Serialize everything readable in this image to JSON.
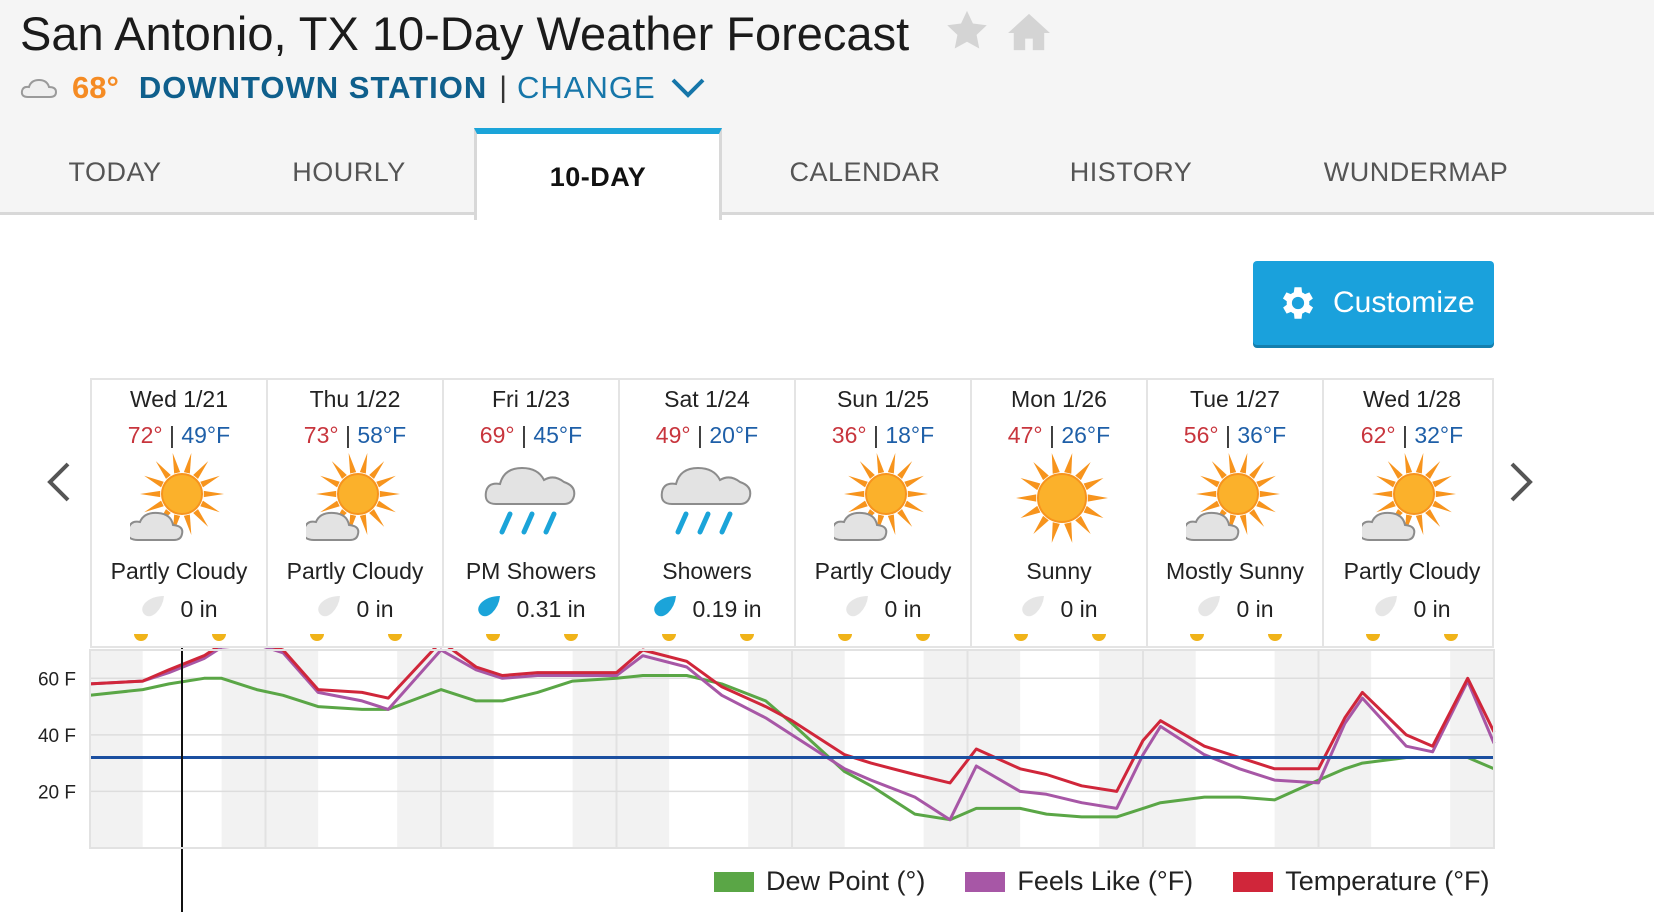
{
  "header": {
    "title": "San Antonio, TX 10-Day Weather Forecast",
    "current_temp": "68°",
    "station_name": "DOWNTOWN STATION",
    "separator": "|",
    "change_label": "CHANGE"
  },
  "tabs": [
    {
      "label": "TODAY",
      "active": false
    },
    {
      "label": "HOURLY",
      "active": false
    },
    {
      "label": "10-DAY",
      "active": true
    },
    {
      "label": "CALENDAR",
      "active": false
    },
    {
      "label": "HISTORY",
      "active": false
    },
    {
      "label": "WUNDERMAP",
      "active": false
    }
  ],
  "customize_label": "Customize",
  "days": [
    {
      "date": "Wed 1/21",
      "high": "72°",
      "low": "49°F",
      "icon": "partly-cloudy-icon",
      "condition": "Partly Cloudy",
      "precip": "0 in",
      "precip_icon": "no-rain-drop-icon"
    },
    {
      "date": "Thu 1/22",
      "high": "73°",
      "low": "58°F",
      "icon": "partly-cloudy-icon",
      "condition": "Partly Cloudy",
      "precip": "0 in",
      "precip_icon": "no-rain-drop-icon"
    },
    {
      "date": "Fri 1/23",
      "high": "69°",
      "low": "45°F",
      "icon": "rain-cloud-icon",
      "condition": "PM Showers",
      "precip": "0.31 in",
      "precip_icon": "rain-drop-icon"
    },
    {
      "date": "Sat 1/24",
      "high": "49°",
      "low": "20°F",
      "icon": "rain-cloud-icon",
      "condition": "Showers",
      "precip": "0.19 in",
      "precip_icon": "rain-drop-icon"
    },
    {
      "date": "Sun 1/25",
      "high": "36°",
      "low": "18°F",
      "icon": "partly-cloudy-icon",
      "condition": "Partly Cloudy",
      "precip": "0 in",
      "precip_icon": "no-rain-drop-icon"
    },
    {
      "date": "Mon 1/26",
      "high": "47°",
      "low": "26°F",
      "icon": "sunny-icon",
      "condition": "Sunny",
      "precip": "0 in",
      "precip_icon": "no-rain-drop-icon"
    },
    {
      "date": "Tue 1/27",
      "high": "56°",
      "low": "36°F",
      "icon": "partly-cloudy-icon",
      "condition": "Mostly Sunny",
      "precip": "0 in",
      "precip_icon": "no-rain-drop-icon"
    },
    {
      "date": "Wed 1/28",
      "high": "62°",
      "low": "32°F",
      "icon": "partly-cloudy-icon",
      "condition": "Partly Cloudy",
      "precip": "0 in",
      "precip_icon": "no-rain-drop-icon"
    }
  ],
  "colors": {
    "accent": "#1aa1dc",
    "high_temp": "#c8353d",
    "low_temp": "#1e5fa8",
    "dew_point": "#5aa646",
    "feels_like": "#a757a6",
    "temperature": "#d0263a",
    "freezing_line": "#1b4fa0",
    "station": "#0f5f8c",
    "current_temp": "#f58b23"
  },
  "chart_data": {
    "type": "line",
    "ylim": [
      0,
      70
    ],
    "yticks": [
      {
        "value": 20,
        "label": "20 F"
      },
      {
        "value": 40,
        "label": "40 F"
      },
      {
        "value": 60,
        "label": "60 F"
      }
    ],
    "x_unit": "day",
    "x_range": [
      0,
      8
    ],
    "freezing_line": 32,
    "series": [
      {
        "name": "Temperature (°F)",
        "x": [
          0,
          0.3,
          0.45,
          0.65,
          0.75,
          0.95,
          1.1,
          1.3,
          1.55,
          1.7,
          2.0,
          2.2,
          2.35,
          2.55,
          2.75,
          3.0,
          3.15,
          3.4,
          3.6,
          3.85,
          4.0,
          4.3,
          4.45,
          4.7,
          4.9,
          5.05,
          5.3,
          5.45,
          5.65,
          5.85,
          6.0,
          6.1,
          6.35,
          6.55,
          6.75,
          7.0,
          7.15,
          7.25,
          7.5,
          7.65,
          7.85,
          8.0
        ],
        "y": [
          58,
          59,
          63,
          68,
          72,
          73,
          70,
          56,
          55,
          53,
          73,
          64,
          61,
          62,
          62,
          62,
          70,
          66,
          57,
          50,
          45,
          33,
          30,
          26,
          23,
          35,
          28,
          26,
          22,
          20,
          38,
          45,
          36,
          32,
          28,
          28,
          46,
          55,
          40,
          36,
          60,
          41
        ]
      },
      {
        "name": "Feels Like (°F)",
        "x": [
          0,
          0.3,
          0.45,
          0.65,
          0.75,
          0.95,
          1.1,
          1.3,
          1.55,
          1.7,
          2.0,
          2.2,
          2.35,
          2.55,
          2.75,
          3.0,
          3.15,
          3.4,
          3.6,
          3.85,
          4.0,
          4.3,
          4.45,
          4.7,
          4.9,
          5.05,
          5.3,
          5.45,
          5.65,
          5.85,
          6.0,
          6.1,
          6.35,
          6.55,
          6.75,
          7.0,
          7.15,
          7.25,
          7.5,
          7.65,
          7.85,
          8.0
        ],
        "y": [
          58,
          59,
          62,
          67,
          71,
          72,
          69,
          55,
          52,
          49,
          70,
          63,
          60,
          61,
          61,
          61,
          68,
          64,
          54,
          46,
          40,
          28,
          24,
          18,
          10,
          29,
          20,
          19,
          16,
          14,
          33,
          43,
          33,
          28,
          24,
          23,
          44,
          53,
          36,
          34,
          59,
          37
        ]
      },
      {
        "name": "Dew Point (°)",
        "x": [
          0,
          0.3,
          0.45,
          0.65,
          0.75,
          0.95,
          1.1,
          1.3,
          1.55,
          1.7,
          2.0,
          2.2,
          2.35,
          2.55,
          2.75,
          3.0,
          3.15,
          3.4,
          3.6,
          3.85,
          4.0,
          4.3,
          4.45,
          4.7,
          4.9,
          5.05,
          5.3,
          5.45,
          5.65,
          5.85,
          6.0,
          6.1,
          6.35,
          6.55,
          6.75,
          7.0,
          7.15,
          7.25,
          7.5,
          7.65,
          7.85,
          8.0
        ],
        "y": [
          54,
          56,
          58,
          60,
          60,
          56,
          54,
          50,
          49,
          49,
          56,
          52,
          52,
          55,
          59,
          60,
          61,
          61,
          58,
          52,
          44,
          27,
          22,
          12,
          10,
          14,
          14,
          12,
          11,
          11,
          14,
          16,
          18,
          18,
          17,
          24,
          28,
          30,
          32,
          32,
          32,
          28
        ]
      }
    ],
    "legend": [
      "Dew Point (°)",
      "Feels Like (°F)",
      "Temperature (°F)"
    ]
  }
}
